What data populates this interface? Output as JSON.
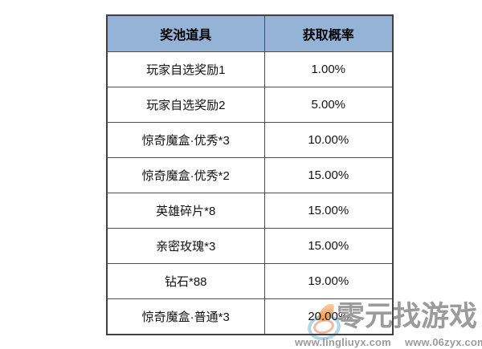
{
  "table": {
    "headers": [
      "奖池道具",
      "获取概率"
    ],
    "rows": [
      {
        "item": "玩家自选奖励1",
        "probability": "1.00%"
      },
      {
        "item": "玩家自选奖励2",
        "probability": "5.00%"
      },
      {
        "item": "惊奇魔盒·优秀*3",
        "probability": "10.00%"
      },
      {
        "item": "惊奇魔盒·优秀*2",
        "probability": "15.00%"
      },
      {
        "item": "英雄碎片*8",
        "probability": "15.00%"
      },
      {
        "item": "亲密玫瑰*3",
        "probability": "15.00%"
      },
      {
        "item": "钻石*88",
        "probability": "19.00%"
      },
      {
        "item": "惊奇魔盒·普通*3",
        "probability": "20.00%"
      }
    ]
  },
  "watermark": {
    "brand": "零元找游戏",
    "urls": [
      "www.lingliuyx.com",
      "www.06zyx.com"
    ],
    "logo_icons": [
      "flame-icon",
      "swirl-icon"
    ]
  },
  "colors": {
    "header_bg": "#95B3D7",
    "table_border": "#4d4d4d",
    "watermark_text": "#9b9b9b",
    "logo_flame": "#ee9a58",
    "logo_swirl": "#aed6e9",
    "background": "#ffffff"
  }
}
